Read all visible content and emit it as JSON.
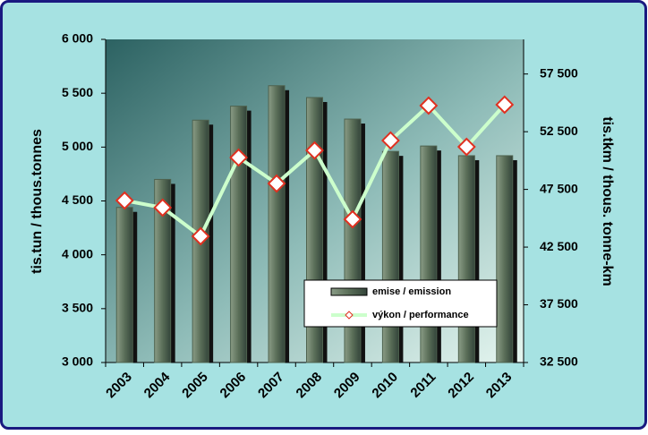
{
  "chart_data": {
    "type": "combo",
    "y_label": "tis.tun / thous.tonnes",
    "y2_label": "tis.tkm / thous. tonne-km",
    "categories": [
      "2003",
      "2004",
      "2005",
      "2006",
      "2007",
      "2008",
      "2009",
      "2010",
      "2011",
      "2012",
      "2013"
    ],
    "series": [
      {
        "name": "emise / emission",
        "type": "bar",
        "color": "#4f634f",
        "values": [
          4440,
          4700,
          5250,
          5380,
          5570,
          5460,
          5260,
          4960,
          5010,
          4920,
          4920
        ]
      },
      {
        "name": "výkon / performance",
        "type": "line",
        "axis": "y2",
        "color": "#ccffcc",
        "marker_edge": "#e03020",
        "values": [
          46540,
          45920,
          43440,
          50260,
          48010,
          50880,
          44910,
          51740,
          54760,
          51190,
          54840
        ]
      }
    ],
    "ylim": [
      3000,
      6000
    ],
    "yticks": [
      {
        "value": 3000,
        "label": "3 000"
      },
      {
        "value": 3500,
        "label": "3 500"
      },
      {
        "value": 4000,
        "label": "4 000"
      },
      {
        "value": 4500,
        "label": "4 500"
      },
      {
        "value": 5000,
        "label": "5 000"
      },
      {
        "value": 5500,
        "label": "5 500"
      },
      {
        "value": 6000,
        "label": "6 000"
      }
    ],
    "y2lim": [
      32500,
      60500
    ],
    "y2ticks": [
      {
        "value": 32500,
        "label": "32 500"
      },
      {
        "value": 37500,
        "label": "37 500"
      },
      {
        "value": 42500,
        "label": "42 500"
      },
      {
        "value": 47500,
        "label": "47 500"
      },
      {
        "value": 52500,
        "label": "52 500"
      },
      {
        "value": 57500,
        "label": "57 500"
      }
    ],
    "legend": "inside-lower-right"
  }
}
